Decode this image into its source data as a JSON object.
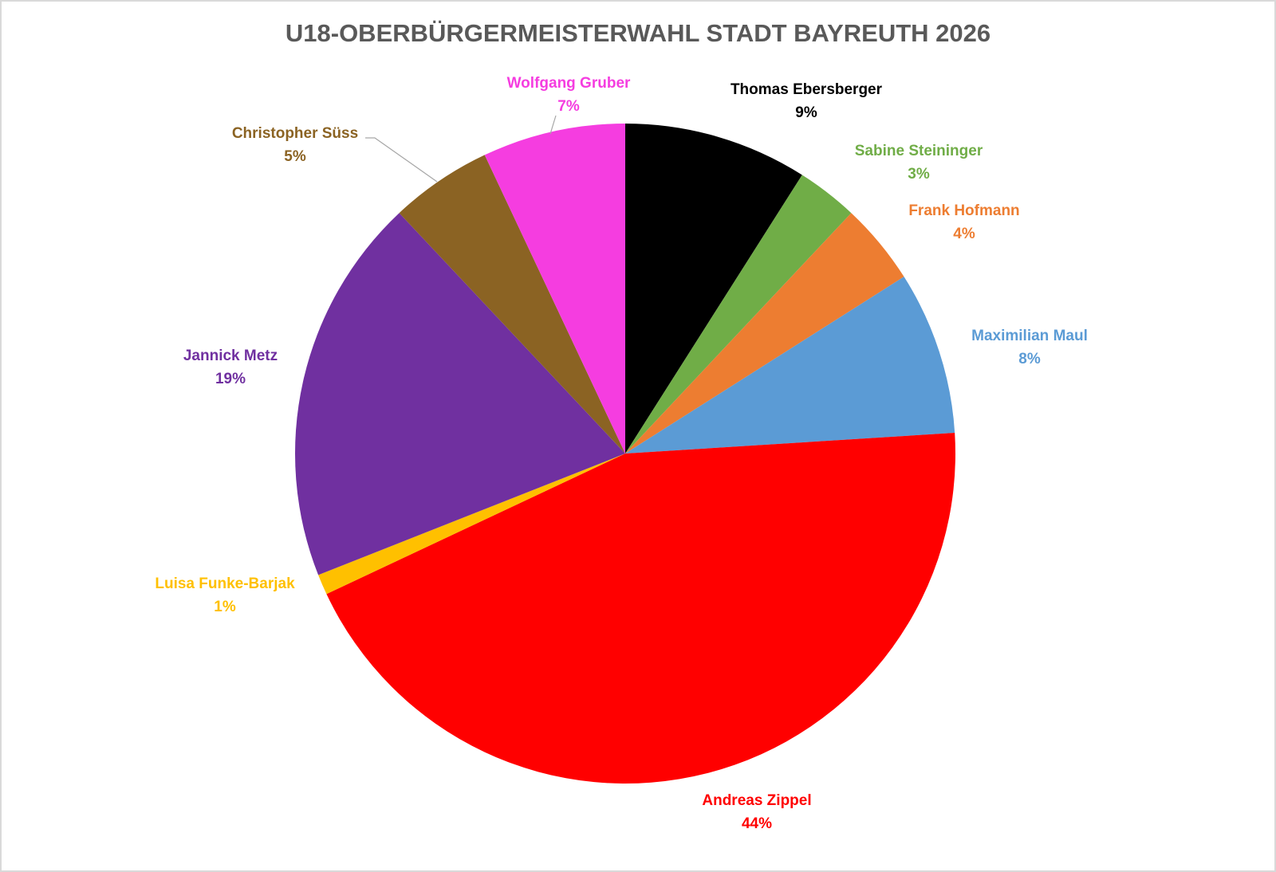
{
  "chart_data": {
    "type": "pie",
    "title": "U18-OBERBÜRGERMEISTERWAHL STADT BAYREUTH 2026",
    "categories": [
      "Thomas Ebersberger",
      "Sabine Steininger",
      "Frank Hofmann",
      "Maximilian Maul",
      "Andreas Zippel",
      "Luisa Funke-Barjak",
      "Jannick Metz",
      "Christopher Süss",
      "Wolfgang Gruber"
    ],
    "values": [
      9,
      3,
      4,
      8,
      44,
      1,
      19,
      5,
      7
    ],
    "value_labels": [
      "9%",
      "3%",
      "4%",
      "8%",
      "44%",
      "1%",
      "19%",
      "5%",
      "7%"
    ],
    "colors": [
      "#000000",
      "#70ad47",
      "#ed7d31",
      "#5b9bd5",
      "#ff0000",
      "#ffc000",
      "#7030a0",
      "#8b6323",
      "#f53de0"
    ]
  }
}
